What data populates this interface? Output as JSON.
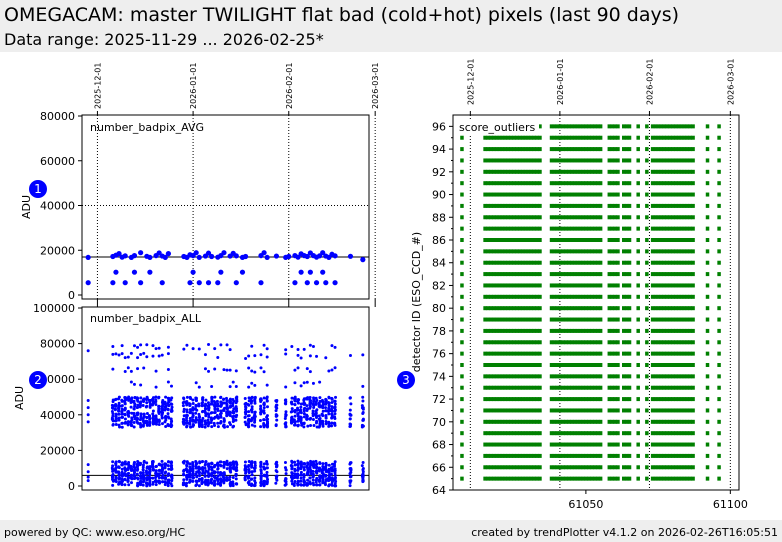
{
  "header": {
    "title": "OMEGACAM: master TWILIGHT flat bad (cold+hot) pixels  (last 90 days)",
    "subtitle": "Data range: 2025-11-29 ... 2026-02-25*"
  },
  "footer": {
    "left": "powered by QC: www.eso.org/HC",
    "right": "created by trendPlotter v4.1.2 on 2026-02-26T16:05:51"
  },
  "colors": {
    "points": "#0000ff",
    "outliers": "#008000",
    "marker": "#0000ff",
    "header_bg": "#eeeeee"
  },
  "chart_data": [
    {
      "type": "scatter",
      "marker": "1",
      "label": "number_badpix_AVG",
      "ylabel": "ADU",
      "ylim": [
        0,
        80000
      ],
      "yticks": [
        0,
        20000,
        40000,
        60000,
        80000
      ],
      "hline": 17000,
      "date_ticks": [
        "2025-12-01",
        "2026-01-01",
        "2026-02-01",
        "2026-03-01"
      ],
      "grid": "dotted at 40000 and at date ticks",
      "x": [
        61007,
        61015,
        61016,
        61017,
        61018,
        61019,
        61021,
        61022,
        61024,
        61026,
        61027,
        61029,
        61030,
        61031,
        61032,
        61033,
        61038,
        61039,
        61040,
        61041,
        61042,
        61043,
        61045,
        61046,
        61047,
        61049,
        61050,
        61051,
        61053,
        61054,
        61055,
        61057,
        61058,
        61063,
        61064,
        61065,
        61068,
        61071,
        61072,
        61074,
        61075,
        61076,
        61077,
        61078,
        61079,
        61080,
        61081,
        61082,
        61083,
        61084,
        61085,
        61086,
        61087,
        61092,
        61096
      ],
      "y": [
        16800,
        17200,
        17800,
        18500,
        16900,
        17500,
        16800,
        17600,
        18900,
        17300,
        16800,
        17600,
        18800,
        17400,
        16800,
        18500,
        17200,
        16800,
        18000,
        17600,
        18900,
        16800,
        17400,
        18700,
        17200,
        16900,
        17600,
        18900,
        17400,
        18600,
        17500,
        16800,
        17200,
        17600,
        18900,
        16800,
        17400,
        16800,
        17200,
        17600,
        16900,
        18400,
        17600,
        17200,
        18800,
        17600,
        16900,
        17500,
        18900,
        17400,
        16800,
        18200,
        17500,
        17300,
        15800
      ],
      "low_x": [
        61007,
        61015,
        61016,
        61019,
        61022,
        61024,
        61027,
        61031,
        61040,
        61041,
        61043,
        61046,
        61049,
        61050,
        61055,
        61057,
        61063,
        61074,
        61076,
        61078,
        61079,
        61081,
        61083,
        61084,
        61087
      ],
      "low_y": [
        5500,
        5500,
        10200,
        5500,
        10200,
        5500,
        10200,
        5500,
        5500,
        10200,
        5500,
        5500,
        5500,
        10200,
        5500,
        10200,
        5500,
        5500,
        10200,
        5500,
        10200,
        5500,
        10200,
        5500,
        5500
      ]
    },
    {
      "type": "scatter",
      "marker": "2",
      "label": "number_badpix_ALL",
      "ylabel": "ADU",
      "ylim": [
        0,
        100000
      ],
      "yticks": [
        0,
        20000,
        40000,
        60000,
        80000,
        100000
      ],
      "hline": 6000,
      "x_range": [
        61005,
        61098
      ],
      "days": [
        61007,
        61015,
        61016,
        61017,
        61018,
        61019,
        61020,
        61021,
        61022,
        61023,
        61024,
        61025,
        61026,
        61027,
        61028,
        61029,
        61030,
        61031,
        61032,
        61033,
        61034,
        61038,
        61039,
        61040,
        61041,
        61042,
        61043,
        61044,
        61045,
        61046,
        61047,
        61048,
        61049,
        61050,
        61051,
        61052,
        61053,
        61054,
        61055,
        61058,
        61059,
        61060,
        61061,
        61063,
        61064,
        61065,
        61068,
        61071,
        61073,
        61074,
        61075,
        61076,
        61077,
        61078,
        61079,
        61080,
        61081,
        61082,
        61083,
        61084,
        61085,
        61086,
        61087,
        61092,
        61096
      ],
      "bands": [
        [
          0,
          14000
        ],
        [
          33000,
          50000
        ]
      ],
      "outlier_levels": [
        57000,
        65000,
        73000,
        78000
      ],
      "first_day_values": [
        76000,
        48000,
        44000,
        40000,
        36000,
        12000,
        8000,
        5000,
        3000
      ]
    },
    {
      "type": "scatter",
      "marker": "3",
      "label": "score_outliers",
      "ylabel": "detector ID (ESO_CCD_#)",
      "ylim": [
        64,
        97
      ],
      "yticks": [
        64,
        66,
        68,
        70,
        72,
        74,
        76,
        78,
        80,
        82,
        84,
        86,
        88,
        90,
        92,
        94,
        96
      ],
      "xticks": [
        61050,
        61100
      ],
      "x_range": [
        61004,
        61103
      ],
      "date_ticks": [
        "2025-12-01",
        "2026-01-01",
        "2026-02-01",
        "2026-03-01"
      ],
      "detectors": [
        65,
        66,
        67,
        68,
        69,
        70,
        71,
        72,
        73,
        74,
        75,
        76,
        77,
        78,
        79,
        80,
        81,
        82,
        83,
        84,
        85,
        86,
        87,
        88,
        89,
        90,
        91,
        92,
        93,
        94,
        95,
        96
      ],
      "days": [
        61007,
        61015,
        61016,
        61017,
        61018,
        61019,
        61020,
        61021,
        61022,
        61023,
        61024,
        61025,
        61026,
        61027,
        61028,
        61029,
        61030,
        61031,
        61032,
        61033,
        61034,
        61038,
        61039,
        61040,
        61041,
        61042,
        61043,
        61044,
        61045,
        61046,
        61047,
        61048,
        61049,
        61050,
        61051,
        61052,
        61053,
        61054,
        61055,
        61058,
        61059,
        61060,
        61061,
        61063,
        61064,
        61065,
        61068,
        61071,
        61073,
        61074,
        61075,
        61076,
        61077,
        61078,
        61079,
        61080,
        61081,
        61082,
        61083,
        61084,
        61085,
        61086,
        61087,
        61092,
        61096
      ]
    }
  ]
}
